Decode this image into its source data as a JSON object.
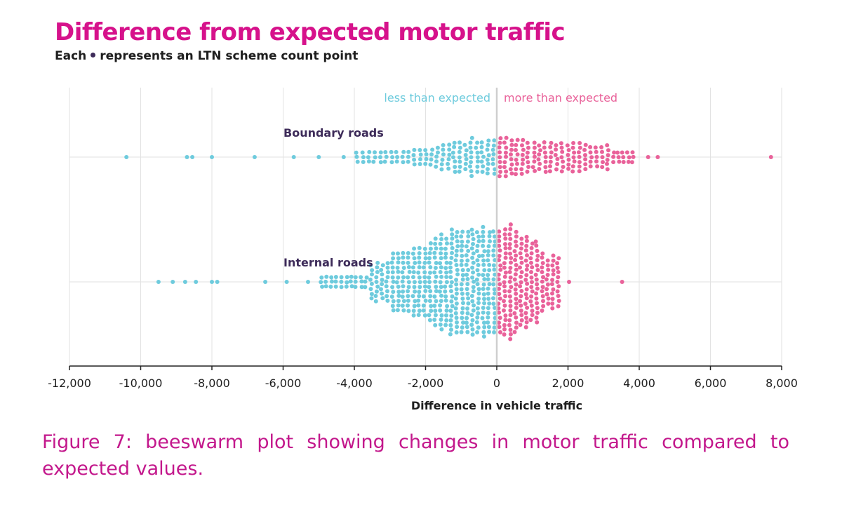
{
  "caption": "Figure 7: beeswarm plot showing changes in motor traffic compared to expected values.",
  "chart_data": {
    "type": "scatter",
    "subtype": "beeswarm",
    "title": "Difference from expected motor traffic",
    "subtitle_prefix": "Each",
    "subtitle_suffix": "represents an LTN scheme count point",
    "xlabel": "Difference in vehicle traffic",
    "xlim": [
      -12000,
      8000
    ],
    "xticks": [
      -12000,
      -10000,
      -8000,
      -6000,
      -4000,
      -2000,
      0,
      2000,
      4000,
      6000,
      8000
    ],
    "xtick_labels": [
      "-12,000",
      "-10,000",
      "-8,000",
      "-6,000",
      "-4,000",
      "-2,000",
      "0",
      "2,000",
      "4,000",
      "6,000",
      "8,000"
    ],
    "region_labels": {
      "negative": "less than expected",
      "positive": "more than expected"
    },
    "colors": {
      "negative": "#6ecbdd",
      "positive": "#e9629a",
      "title": "#d6128b",
      "group_label": "#3d2b59",
      "grid": "#e2e2e2",
      "zero_line": "#cfcfcf",
      "axis": "#222222"
    },
    "series": [
      {
        "name": "Boundary roads",
        "approx_count": 285,
        "outliers": [
          -10400,
          -8700,
          -8550,
          -8000,
          -6800,
          -5700,
          -5000,
          -4300,
          4250,
          4520,
          7700
        ],
        "density": [
          {
            "range": [
              -4000,
              -3200
            ],
            "max_stack": 3
          },
          {
            "range": [
              -3200,
              -2400
            ],
            "max_stack": 3
          },
          {
            "range": [
              -2400,
              -1600
            ],
            "max_stack": 5
          },
          {
            "range": [
              -1600,
              -800
            ],
            "max_stack": 7
          },
          {
            "range": [
              -800,
              0
            ],
            "max_stack": 9
          },
          {
            "range": [
              0,
              800
            ],
            "max_stack": 9
          },
          {
            "range": [
              800,
              1600
            ],
            "max_stack": 8
          },
          {
            "range": [
              1600,
              2400
            ],
            "max_stack": 7
          },
          {
            "range": [
              2400,
              3200
            ],
            "max_stack": 6
          },
          {
            "range": [
              3200,
              3900
            ],
            "max_stack": 3
          }
        ]
      },
      {
        "name": "Internal roads",
        "approx_count": 480,
        "outliers": [
          -9500,
          -9100,
          -8750,
          -8450,
          -8000,
          -7850,
          -6500,
          -5900,
          -5300,
          2030,
          3520
        ],
        "density": [
          {
            "range": [
              -5000,
              -3600
            ],
            "max_stack": 3
          },
          {
            "range": [
              -3600,
              -3000
            ],
            "max_stack": 9
          },
          {
            "range": [
              -3000,
              -2400
            ],
            "max_stack": 15
          },
          {
            "range": [
              -2400,
              -1800
            ],
            "max_stack": 19
          },
          {
            "range": [
              -1800,
              -1200
            ],
            "max_stack": 23
          },
          {
            "range": [
              -1200,
              -600
            ],
            "max_stack": 25
          },
          {
            "range": [
              -600,
              0
            ],
            "max_stack": 27
          },
          {
            "range": [
              0,
              600
            ],
            "max_stack": 27
          },
          {
            "range": [
              600,
              1200
            ],
            "max_stack": 21
          },
          {
            "range": [
              1200,
              1800
            ],
            "max_stack": 13
          }
        ]
      }
    ]
  }
}
